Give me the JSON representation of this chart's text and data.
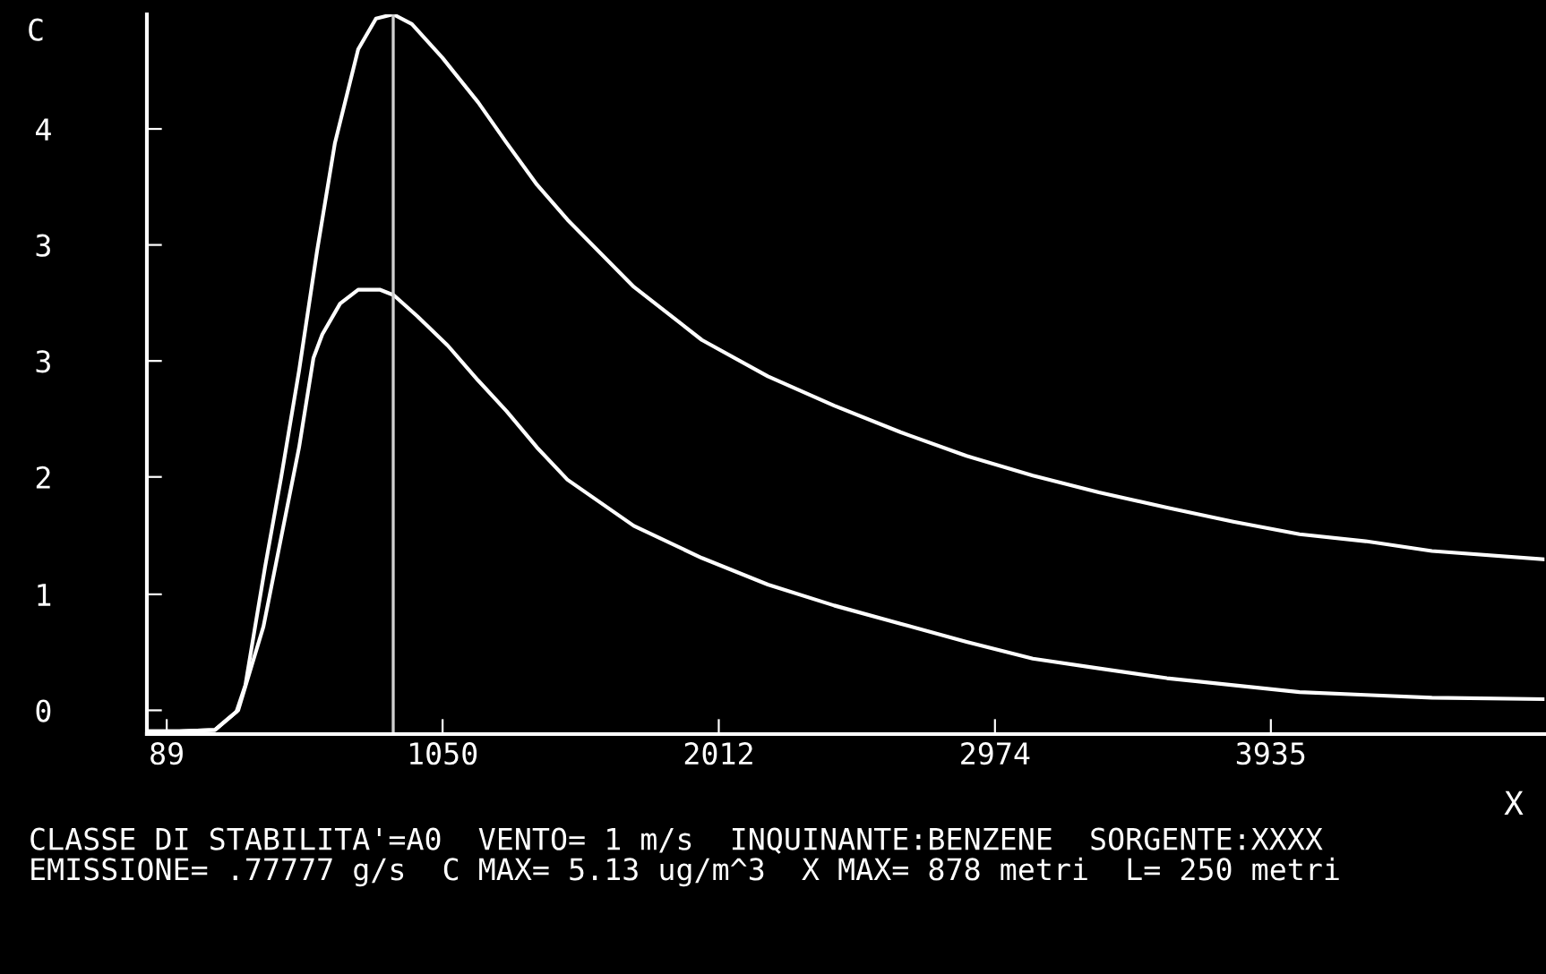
{
  "chart_data": {
    "type": "line",
    "xlabel": "X",
    "ylabel": "C",
    "xlim": [
      20,
      4888
    ],
    "ylim": [
      -0.02,
      5.13
    ],
    "xticks": [
      89,
      1050,
      2012,
      2974,
      3935
    ],
    "yticks": [
      {
        "value": 0.15,
        "label": "0"
      },
      {
        "value": 0.98,
        "label": "1"
      },
      {
        "value": 1.82,
        "label": "2"
      },
      {
        "value": 2.65,
        "label": "3"
      },
      {
        "value": 3.48,
        "label": "3"
      },
      {
        "value": 4.31,
        "label": "4"
      }
    ],
    "grid": false,
    "legend": false,
    "marker": "none",
    "line_style": "solid",
    "series": [
      {
        "color": "#ffffff",
        "x": [
          27,
          133,
          257,
          332,
          363,
          432,
          488,
          550,
          613,
          675,
          756,
          818,
          878,
          943,
          1049,
          1174,
          1273,
          1379,
          1485,
          1716,
          1953,
          2183,
          2414,
          2645,
          2875,
          3106,
          3336,
          3573,
          3804,
          4035,
          4265,
          4496,
          4888
        ],
        "values": [
          0,
          0,
          0.01,
          0.14,
          0.33,
          1.18,
          1.82,
          2.58,
          3.44,
          4.21,
          4.88,
          5.1,
          5.13,
          5.06,
          4.82,
          4.5,
          4.21,
          3.91,
          3.66,
          3.18,
          2.8,
          2.54,
          2.33,
          2.14,
          1.97,
          1.83,
          1.71,
          1.6,
          1.5,
          1.41,
          1.36,
          1.29,
          1.23
        ]
      },
      {
        "color": "#ffffff",
        "x": [
          27,
          133,
          257,
          338,
          426,
          488,
          550,
          600,
          631,
          693,
          756,
          831,
          880,
          962,
          1068,
          1174,
          1273,
          1379,
          1485,
          1716,
          1953,
          2183,
          2414,
          2645,
          2875,
          3106,
          3336,
          3573,
          3804,
          4035,
          4265,
          4496,
          4888
        ],
        "values": [
          0,
          0,
          0.01,
          0.15,
          0.75,
          1.39,
          2.03,
          2.67,
          2.84,
          3.06,
          3.16,
          3.16,
          3.12,
          2.97,
          2.76,
          2.51,
          2.29,
          2.03,
          1.8,
          1.47,
          1.24,
          1.05,
          0.9,
          0.77,
          0.64,
          0.52,
          0.45,
          0.38,
          0.33,
          0.28,
          0.26,
          0.24,
          0.23
        ]
      }
    ],
    "ref_lines": [
      {
        "axis": "x",
        "value": 878,
        "color": "#d0d0d0"
      }
    ],
    "annotations": [
      "CLASSE DI STABILITA'=A0  VENTO= 1 m/s  INQUINANTE:BENZENE  SORGENTE:XXXX",
      "EMISSIONE= .77777 g/s  C MAX= 5.13 ug/m^3  X MAX= 878 metri  L= 250 metri"
    ]
  }
}
